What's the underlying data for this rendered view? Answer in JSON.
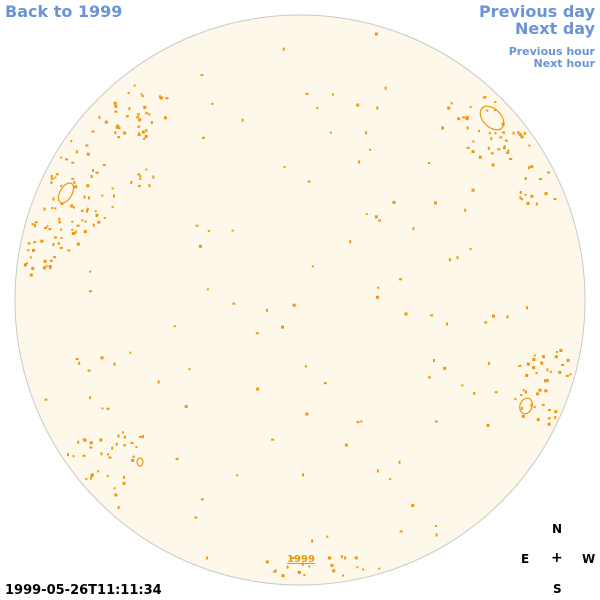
{
  "nav": {
    "back_label": "Back to 1999",
    "prev_day_label": "Previous day",
    "next_day_label": "Next day",
    "prev_hour_label": "Previous hour",
    "next_hour_label": "Next hour",
    "link_color": "#6c93d8"
  },
  "timestamp": "1999-05-26T11:11:34",
  "compass": {
    "north": "N",
    "east": "E",
    "center": "+",
    "west": "W",
    "south": "S"
  },
  "sky": {
    "background_color": "#fdf8ea",
    "mark_color": "#f0960a",
    "year_label": "1999"
  }
}
